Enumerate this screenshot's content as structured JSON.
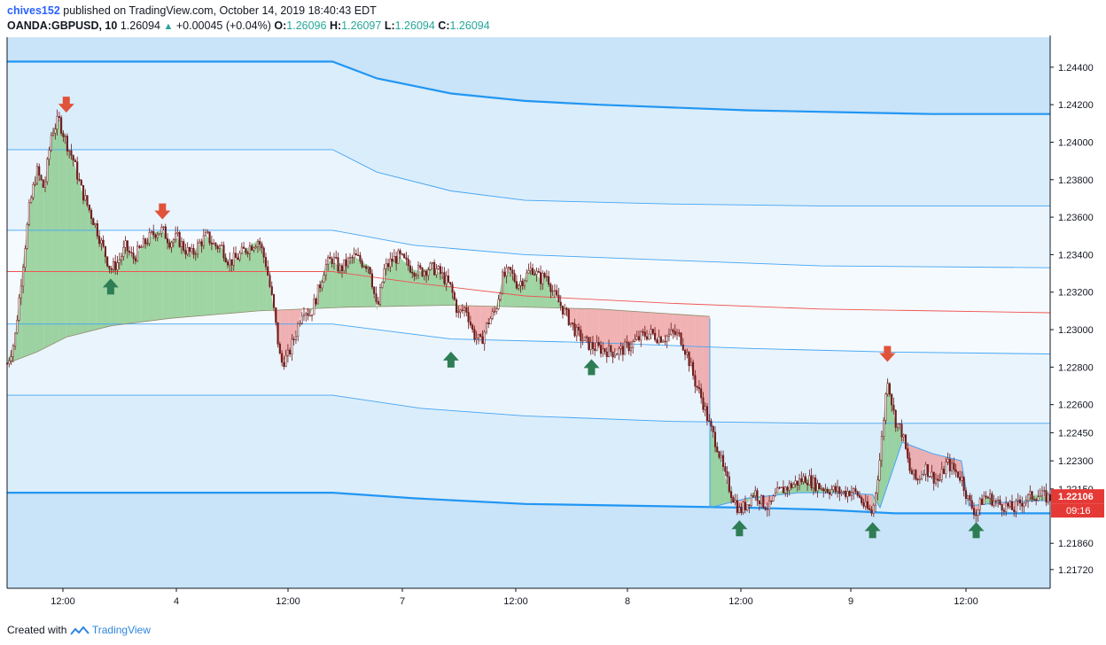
{
  "header": {
    "user": "chives152",
    "published_text": "published on TradingView.com, October 14, 2019 18:40:43 EDT",
    "symbol": "OANDA:GBPUSD, 10",
    "last": "1.26094",
    "change": "+0.00045 (+0.04%)",
    "o_label": "O:",
    "o_value": "1.26096",
    "h_label": "H:",
    "h_value": "1.26097",
    "l_label": "L:",
    "l_value": "1.26094",
    "c_label": "C:",
    "c_value": "1.26094"
  },
  "footer": {
    "created_with": "Created with",
    "brand": "TradingView"
  },
  "colors": {
    "band_outer": "#c9e3f8",
    "band_mid": "#daedfb",
    "band_inner": "#eaf4fc",
    "band_core": "#f5fafe",
    "outer_line": "#2196f3",
    "inner_line": "#42a5f5",
    "vwap_line": "#ef5350",
    "candle": "#6d1b1b",
    "arrow_down": "#e0533a",
    "arrow_up": "#2e7d55",
    "fill_green": "#81c784",
    "fill_red": "#ef9a9a",
    "price_tag": "#e53935"
  },
  "chart_data": {
    "type": "line",
    "title": "",
    "y_ticks": [
      1.244,
      1.242,
      1.24,
      1.238,
      1.236,
      1.234,
      1.232,
      1.23,
      1.228,
      1.226,
      1.2245,
      1.223,
      1.2215,
      1.2186,
      1.2172
    ],
    "y_tick_labels": [
      "1.24400",
      "1.24200",
      "1.24000",
      "1.23800",
      "1.23600",
      "1.23400",
      "1.23200",
      "1.23000",
      "1.22800",
      "1.22600",
      "1.22450",
      "1.22300",
      "1.22150",
      "1.21860",
      "1.21720"
    ],
    "ylim": [
      1.2162,
      1.2456
    ],
    "x_ticks": [
      "12:00",
      "4",
      "12:00",
      "7",
      "12:00",
      "8",
      "12:00",
      "9",
      "12:00"
    ],
    "price_tag": "1.22106",
    "price_tag_value": 1.22106,
    "countdown": "09:16",
    "price_path": [
      [
        0,
        1.2282
      ],
      [
        1,
        1.2294
      ],
      [
        2,
        1.233
      ],
      [
        3,
        1.2365
      ],
      [
        4,
        1.2385
      ],
      [
        5,
        1.2375
      ],
      [
        6,
        1.2405
      ],
      [
        7,
        1.2412
      ],
      [
        8,
        1.24
      ],
      [
        9,
        1.239
      ],
      [
        10,
        1.2375
      ],
      [
        11,
        1.2365
      ],
      [
        12,
        1.2355
      ],
      [
        13,
        1.2343
      ],
      [
        14,
        1.2332
      ],
      [
        15,
        1.2336
      ],
      [
        16,
        1.2344
      ],
      [
        17,
        1.2338
      ],
      [
        18,
        1.2343
      ],
      [
        19,
        1.2348
      ],
      [
        20,
        1.2352
      ],
      [
        21,
        1.2353
      ],
      [
        22,
        1.2347
      ],
      [
        23,
        1.2349
      ],
      [
        24,
        1.2343
      ],
      [
        25,
        1.234
      ],
      [
        26,
        1.2346
      ],
      [
        27,
        1.235
      ],
      [
        28,
        1.2345
      ],
      [
        29,
        1.2344
      ],
      [
        30,
        1.2336
      ],
      [
        31,
        1.2338
      ],
      [
        32,
        1.2342
      ],
      [
        33,
        1.2345
      ],
      [
        34,
        1.2348
      ],
      [
        35,
        1.2335
      ],
      [
        36,
        1.2312
      ],
      [
        37,
        1.2282
      ],
      [
        38,
        1.2286
      ],
      [
        39,
        1.2298
      ],
      [
        40,
        1.2312
      ],
      [
        41,
        1.2308
      ],
      [
        42,
        1.232
      ],
      [
        43,
        1.2334
      ],
      [
        44,
        1.2338
      ],
      [
        45,
        1.2332
      ],
      [
        46,
        1.2336
      ],
      [
        47,
        1.2339
      ],
      [
        48,
        1.2336
      ],
      [
        49,
        1.2334
      ],
      [
        50,
        1.231
      ],
      [
        51,
        1.2332
      ],
      [
        52,
        1.2337
      ],
      [
        53,
        1.2339
      ],
      [
        54,
        1.2335
      ],
      [
        55,
        1.2332
      ],
      [
        56,
        1.2331
      ],
      [
        57,
        1.2333
      ],
      [
        58,
        1.2332
      ],
      [
        59,
        1.2328
      ],
      [
        60,
        1.2322
      ],
      [
        61,
        1.2308
      ],
      [
        62,
        1.2312
      ],
      [
        63,
        1.2298
      ],
      [
        64,
        1.2293
      ],
      [
        65,
        1.2304
      ],
      [
        66,
        1.231
      ],
      [
        67,
        1.2328
      ],
      [
        68,
        1.2331
      ],
      [
        69,
        1.2324
      ],
      [
        70,
        1.2328
      ],
      [
        71,
        1.2333
      ],
      [
        72,
        1.2327
      ],
      [
        73,
        1.2329
      ],
      [
        74,
        1.2318
      ],
      [
        75,
        1.2312
      ],
      [
        76,
        1.2305
      ],
      [
        77,
        1.2298
      ],
      [
        78,
        1.2294
      ],
      [
        79,
        1.2291
      ],
      [
        80,
        1.229
      ],
      [
        81,
        1.2289
      ],
      [
        82,
        1.2288
      ],
      [
        83,
        1.2289
      ],
      [
        84,
        1.2291
      ],
      [
        85,
        1.2294
      ],
      [
        86,
        1.2297
      ],
      [
        87,
        1.2298
      ],
      [
        88,
        1.2296
      ],
      [
        89,
        1.2296
      ],
      [
        90,
        1.2298
      ],
      [
        91,
        1.2296
      ],
      [
        92,
        1.2286
      ],
      [
        93,
        1.2272
      ],
      [
        94,
        1.2262
      ],
      [
        95,
        1.2248
      ],
      [
        96,
        1.2238
      ],
      [
        97,
        1.2222
      ],
      [
        98,
        1.2212
      ],
      [
        99,
        1.2203
      ],
      [
        100,
        1.2207
      ],
      [
        101,
        1.2214
      ],
      [
        102,
        1.2208
      ],
      [
        103,
        1.2205
      ],
      [
        104,
        1.2212
      ],
      [
        105,
        1.2215
      ],
      [
        106,
        1.2217
      ],
      [
        107,
        1.2219
      ],
      [
        108,
        1.2221
      ],
      [
        109,
        1.2218
      ],
      [
        110,
        1.2216
      ],
      [
        111,
        1.2215
      ],
      [
        112,
        1.2214
      ],
      [
        113,
        1.2213
      ],
      [
        114,
        1.2214
      ],
      [
        115,
        1.2212
      ],
      [
        116,
        1.2205
      ],
      [
        117,
        1.2202
      ],
      [
        118,
        1.2232
      ],
      [
        119,
        1.2275
      ],
      [
        120,
        1.2252
      ],
      [
        121,
        1.2245
      ],
      [
        122,
        1.2225
      ],
      [
        123,
        1.2219
      ],
      [
        124,
        1.2227
      ],
      [
        125,
        1.2222
      ],
      [
        126,
        1.2219
      ],
      [
        127,
        1.2229
      ],
      [
        128,
        1.2225
      ],
      [
        129,
        1.2221
      ],
      [
        130,
        1.2208
      ],
      [
        131,
        1.2202
      ],
      [
        132,
        1.2211
      ],
      [
        133,
        1.221
      ],
      [
        134,
        1.2207
      ],
      [
        135,
        1.2206
      ],
      [
        136,
        1.2204
      ],
      [
        137,
        1.2208
      ],
      [
        138,
        1.221
      ],
      [
        139,
        1.2212
      ],
      [
        140,
        1.2211
      ],
      [
        141,
        1.221
      ]
    ],
    "series": [
      {
        "name": "",
        "role": "outer_upper",
        "values": [
          [
            0,
            1.2443
          ],
          [
            44,
            1.2443
          ],
          [
            50,
            1.2434
          ],
          [
            60,
            1.2426
          ],
          [
            70,
            1.2422
          ],
          [
            80,
            1.242
          ],
          [
            100,
            1.2417
          ],
          [
            125,
            1.2415
          ],
          [
            141,
            1.2415
          ]
        ]
      },
      {
        "name": "",
        "role": "upper_2",
        "values": [
          [
            0,
            1.2396
          ],
          [
            44,
            1.2396
          ],
          [
            50,
            1.2384
          ],
          [
            60,
            1.2374
          ],
          [
            70,
            1.2369
          ],
          [
            90,
            1.2367
          ],
          [
            110,
            1.2366
          ],
          [
            141,
            1.2366
          ]
        ]
      },
      {
        "name": "",
        "role": "upper_1",
        "values": [
          [
            0,
            1.2353
          ],
          [
            44,
            1.2353
          ],
          [
            55,
            1.2345
          ],
          [
            70,
            1.234
          ],
          [
            90,
            1.2337
          ],
          [
            110,
            1.2334
          ],
          [
            141,
            1.2333
          ]
        ]
      },
      {
        "name": "",
        "role": "vwap",
        "values": [
          [
            0,
            1.2331
          ],
          [
            44,
            1.2331
          ],
          [
            55,
            1.2325
          ],
          [
            70,
            1.2318
          ],
          [
            90,
            1.2314
          ],
          [
            110,
            1.2311
          ],
          [
            141,
            1.2309
          ]
        ]
      },
      {
        "name": "",
        "role": "lower_1",
        "values": [
          [
            0,
            1.2303
          ],
          [
            44,
            1.2303
          ],
          [
            60,
            1.2295
          ],
          [
            80,
            1.2293
          ],
          [
            100,
            1.229
          ],
          [
            120,
            1.2288
          ],
          [
            141,
            1.2287
          ]
        ]
      },
      {
        "name": "",
        "role": "lower_2",
        "values": [
          [
            0,
            1.2265
          ],
          [
            44,
            1.2265
          ],
          [
            56,
            1.2258
          ],
          [
            70,
            1.2254
          ],
          [
            90,
            1.2251
          ],
          [
            110,
            1.225
          ],
          [
            141,
            1.225
          ]
        ]
      },
      {
        "name": "",
        "role": "outer_lower",
        "values": [
          [
            0,
            1.2213
          ],
          [
            44,
            1.2213
          ],
          [
            55,
            1.221
          ],
          [
            70,
            1.2207
          ],
          [
            100,
            1.2205
          ],
          [
            110,
            1.2204
          ],
          [
            120,
            1.2202
          ],
          [
            141,
            1.2202
          ]
        ]
      },
      {
        "name": "",
        "role": "anchored_vwap_1",
        "values": [
          [
            0,
            1.2282
          ],
          [
            4,
            1.2288
          ],
          [
            8,
            1.2296
          ],
          [
            14,
            1.2302
          ],
          [
            22,
            1.2306
          ],
          [
            34,
            1.231
          ],
          [
            46,
            1.2312
          ],
          [
            60,
            1.2313
          ],
          [
            80,
            1.2311
          ],
          [
            95,
            1.2307
          ]
        ]
      },
      {
        "name": "",
        "role": "anchored_vwap_2",
        "values": [
          [
            95,
            1.2306
          ],
          [
            95,
            1.2205
          ],
          [
            100,
            1.221
          ],
          [
            107,
            1.2213
          ],
          [
            112,
            1.2213
          ],
          [
            117,
            1.2212
          ],
          [
            118,
            1.2205
          ],
          [
            121,
            1.224
          ],
          [
            125,
            1.2234
          ],
          [
            129,
            1.223
          ],
          [
            130,
            1.2206
          ],
          [
            135,
            1.2208
          ],
          [
            141,
            1.2209
          ]
        ]
      }
    ],
    "signals": [
      {
        "type": "down",
        "x": 8,
        "y": 1.2412
      },
      {
        "type": "down",
        "x": 21,
        "y": 1.2355
      },
      {
        "type": "up",
        "x": 14,
        "y": 1.2332
      },
      {
        "type": "up",
        "x": 60,
        "y": 1.2293
      },
      {
        "type": "up",
        "x": 79,
        "y": 1.2289
      },
      {
        "type": "up",
        "x": 99,
        "y": 1.2203
      },
      {
        "type": "up",
        "x": 117,
        "y": 1.2202
      },
      {
        "type": "up",
        "x": 131,
        "y": 1.2202
      },
      {
        "type": "down",
        "x": 119,
        "y": 1.2279
      }
    ],
    "grid": false,
    "legend": "none"
  }
}
